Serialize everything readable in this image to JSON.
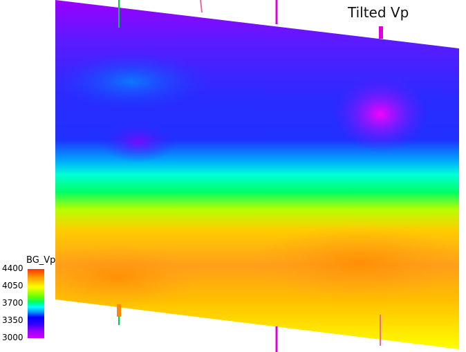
{
  "title": "Tilted Vp",
  "legend": {
    "label": "BG_Vp",
    "ticks": [
      "4400",
      "4050",
      "3700",
      "3350",
      "3000"
    ]
  },
  "colors": {
    "background": "#ffffff",
    "well_green": "#00cc44",
    "well_magenta": "#dd00dd",
    "well_pink": "#ee66aa",
    "well_orange": "#ff8800"
  }
}
